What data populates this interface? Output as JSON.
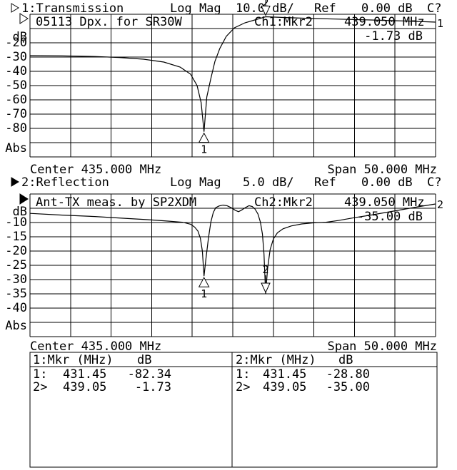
{
  "screen": {
    "bg": "#ffffff",
    "fg": "#000000"
  },
  "chart1": {
    "header": {
      "trace": "1:Transmission",
      "format": "Log Mag",
      "scale": "10.0 dB/",
      "ref_label": "Ref",
      "ref_value": "0.00 dB",
      "cal_status": "C?"
    },
    "title": "05113 Dpx. for SR30W",
    "readout": {
      "label": "Ch1:Mkr2",
      "freq": "439.050 MHz",
      "value": "-1.73 dB"
    },
    "unit": "dB",
    "yticks": [
      "-20",
      "-30",
      "-40",
      "-50",
      "-60",
      "-70",
      "-80"
    ],
    "abs_label": "Abs",
    "trace_tag": "1",
    "center": "Center 435.000 MHz",
    "span": "Span 50.000 MHz"
  },
  "chart2": {
    "header": {
      "trace": "2:Reflection",
      "format": "Log Mag",
      "scale": "5.0 dB/",
      "ref_label": "Ref",
      "ref_value": "0.00 dB",
      "cal_status": "C?"
    },
    "title": "Ant-TX meas. by SP2XDM",
    "readout": {
      "label": "Ch2:Mkr2",
      "freq": "439.050 MHz",
      "value": "-35.00 dB"
    },
    "unit": "dB",
    "yticks": [
      "-10",
      "-15",
      "-20",
      "-25",
      "-30",
      "-35",
      "-40"
    ],
    "abs_label": "Abs",
    "trace_tag": "2",
    "center": "Center 435.000 MHz",
    "span": "Span 50.000 MHz"
  },
  "marker_table": {
    "ch1": {
      "header_mkr": "1:Mkr (MHz)",
      "header_unit": "dB",
      "rows": [
        {
          "n": "1:",
          "freq": "431.45",
          "value": "-82.34"
        },
        {
          "n": "2>",
          "freq": "439.05",
          "value": "-1.73"
        }
      ]
    },
    "ch2": {
      "header_mkr": "2:Mkr (MHz)",
      "header_unit": "dB",
      "rows": [
        {
          "n": "1:",
          "freq": "431.45",
          "value": "-28.80"
        },
        {
          "n": "2>",
          "freq": "439.05",
          "value": "-35.00"
        }
      ]
    }
  },
  "chart_data": [
    {
      "type": "line",
      "title": "1:Transmission Log Mag 10.0 dB/ Ref 0.00 dB",
      "ylabel": "dB",
      "center_MHz": 435.0,
      "span_MHz": 50.0,
      "db_per_div": 10.0,
      "xlim": [
        410,
        460
      ],
      "ylim": [
        -100,
        0
      ],
      "x": [
        410,
        414,
        418,
        421,
        424,
        426.5,
        428.5,
        429.8,
        430.6,
        431.1,
        431.45,
        431.8,
        432.3,
        432.8,
        433.4,
        434.2,
        435.2,
        436.5,
        438,
        439.05,
        441,
        444,
        448,
        452,
        456,
        460
      ],
      "y": [
        -29,
        -29.2,
        -29.6,
        -30.3,
        -31.5,
        -33.5,
        -37,
        -42,
        -50,
        -62,
        -82.34,
        -58,
        -45,
        -33,
        -24,
        -15.5,
        -9.5,
        -6,
        -3.5,
        -1.73,
        -2.2,
        -2.8,
        -3.4,
        -4.0,
        -4.7,
        -5.5
      ],
      "markers": [
        {
          "n": 1,
          "freq_MHz": 431.45,
          "dB": -82.34
        },
        {
          "n": 2,
          "freq_MHz": 439.05,
          "dB": -1.73
        }
      ]
    },
    {
      "type": "line",
      "title": "2:Reflection Log Mag 5.0 dB/ Ref 0.00 dB",
      "ylabel": "dB",
      "center_MHz": 435.0,
      "span_MHz": 50.0,
      "db_per_div": 5.0,
      "xlim": [
        410,
        460
      ],
      "ylim": [
        -50,
        0
      ],
      "x": [
        410,
        414,
        418,
        421.5,
        424.5,
        427,
        428.8,
        429.8,
        430.3,
        430.7,
        431,
        431.25,
        431.45,
        431.7,
        432,
        432.3,
        432.6,
        432.9,
        433.3,
        433.8,
        434.3,
        434.8,
        435.3,
        435.7,
        436.05,
        436.6,
        437,
        437.4,
        437.75,
        438.1,
        438.4,
        438.65,
        438.85,
        439.05,
        439.3,
        439.6,
        440,
        440.5,
        441.2,
        442.2,
        443.5,
        445,
        446.5,
        448,
        450,
        452,
        454,
        456,
        458,
        460
      ],
      "y": [
        -6.8,
        -7.4,
        -7.9,
        -8.5,
        -9.0,
        -9.5,
        -9.9,
        -10.6,
        -11.6,
        -13,
        -15.5,
        -20,
        -28.8,
        -22.5,
        -15.5,
        -9.8,
        -6.5,
        -4.8,
        -4.2,
        -3.9,
        -4.1,
        -4.8,
        -5.7,
        -6.2,
        -5.7,
        -4.7,
        -4.1,
        -4.4,
        -5.3,
        -7.0,
        -9.8,
        -14,
        -21,
        -35.0,
        -26,
        -19.5,
        -15.8,
        -13.6,
        -12.2,
        -11.2,
        -10.5,
        -10.1,
        -9.9,
        -9.3,
        -8.3,
        -7.4,
        -6.4,
        -5.4,
        -4.4,
        -3.5
      ],
      "markers": [
        {
          "n": 1,
          "freq_MHz": 431.45,
          "dB": -28.8
        },
        {
          "n": 2,
          "freq_MHz": 439.05,
          "dB": -35.0
        }
      ]
    }
  ]
}
